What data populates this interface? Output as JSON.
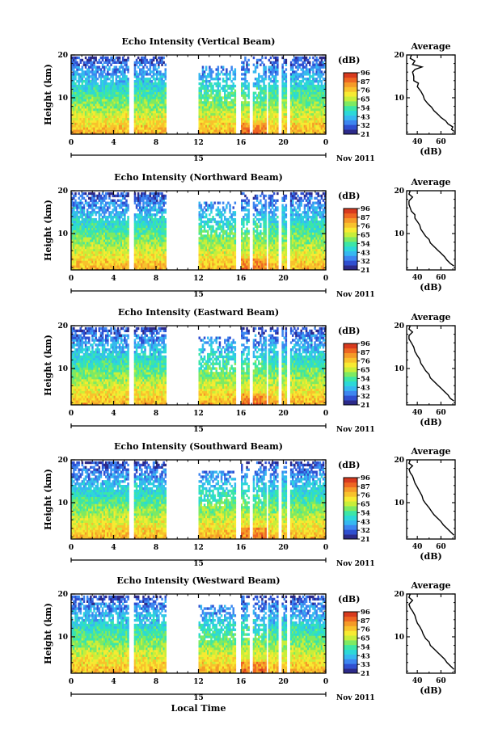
{
  "footer": {
    "xlabel": "Local Time"
  },
  "colorbar": {
    "unit": "(dB)",
    "ticks_a": [
      "96",
      "87",
      "76",
      "65",
      "54",
      "43",
      "32",
      "21"
    ],
    "ticks_b": [
      "96",
      "87",
      "76",
      "65",
      "54",
      "43",
      "33",
      "21"
    ],
    "colors": [
      "#2c2a8a",
      "#2f4fd0",
      "#3d86f0",
      "#36b8f0",
      "#2cd8d8",
      "#3ce6a6",
      "#7eea62",
      "#c8ee3a",
      "#f7ea32",
      "#f8c22c",
      "#f59a28",
      "#ee6622",
      "#d83a1e"
    ]
  },
  "chart_data": [
    {
      "type": "heatmap",
      "title": "Echo Intensity (Vertical Beam)",
      "ylabel": "Height (km)",
      "x_ticks": [
        "0",
        "4",
        "8",
        "12",
        "16",
        "20",
        "0"
      ],
      "y_ticks": [
        "20",
        "10"
      ],
      "date_day": "15",
      "date_label": "Nov 2011",
      "xlim": [
        0,
        24
      ],
      "ylim": [
        1.5,
        20
      ],
      "colorbar_ticks": "a",
      "profile": {
        "title": "Average",
        "xlabel": "(dB)",
        "x_ticks": [
          "40",
          "60"
        ],
        "xlim": [
          31,
          72
        ],
        "y_ticks": [
          "20",
          "10"
        ],
        "points": [
          [
            35,
            20
          ],
          [
            34,
            19.2
          ],
          [
            38,
            18.6
          ],
          [
            36,
            17.8
          ],
          [
            44,
            17.2
          ],
          [
            38,
            16.6
          ],
          [
            36,
            16
          ],
          [
            37,
            15
          ],
          [
            37,
            14
          ],
          [
            41,
            13.4
          ],
          [
            40,
            12.6
          ],
          [
            43,
            11.5
          ],
          [
            45,
            10.5
          ],
          [
            46,
            9.6
          ],
          [
            49,
            8.6
          ],
          [
            52,
            7.8
          ],
          [
            54,
            7
          ],
          [
            58,
            6
          ],
          [
            60,
            5.4
          ],
          [
            64,
            4.6
          ],
          [
            66,
            3.9
          ],
          [
            70,
            3.2
          ],
          [
            69,
            2.6
          ],
          [
            71,
            2.2
          ]
        ]
      }
    },
    {
      "type": "heatmap",
      "title": "Echo Intensity (Northward Beam)",
      "ylabel": "Height (km)",
      "x_ticks": [
        "0",
        "4",
        "8",
        "12",
        "16",
        "20",
        "0"
      ],
      "y_ticks": [
        "20",
        "10"
      ],
      "date_day": "15",
      "date_label": "Nov 2011",
      "xlim": [
        0,
        24
      ],
      "ylim": [
        1.5,
        20
      ],
      "colorbar_ticks": "a",
      "profile": {
        "title": "Average",
        "xlabel": "(dB)",
        "x_ticks": [
          "40",
          "60"
        ],
        "xlim": [
          31,
          72
        ],
        "y_ticks": [
          "20",
          "10"
        ],
        "points": [
          [
            34,
            20
          ],
          [
            33,
            19.2
          ],
          [
            36,
            18.5
          ],
          [
            33,
            17.6
          ],
          [
            33,
            16.8
          ],
          [
            34,
            16
          ],
          [
            35,
            15.2
          ],
          [
            38,
            14.4
          ],
          [
            38,
            13.6
          ],
          [
            40,
            12.8
          ],
          [
            42,
            12
          ],
          [
            43,
            11
          ],
          [
            45,
            10.2
          ],
          [
            47,
            9.4
          ],
          [
            50,
            8.6
          ],
          [
            51,
            7.8
          ],
          [
            54,
            7
          ],
          [
            57,
            6.2
          ],
          [
            60,
            5.4
          ],
          [
            63,
            4.6
          ],
          [
            65,
            3.8
          ],
          [
            68,
            3
          ],
          [
            71,
            2.4
          ]
        ]
      }
    },
    {
      "type": "heatmap",
      "title": "Echo Intensity (Eastward Beam)",
      "ylabel": "Height (km)",
      "x_ticks": [
        "0",
        "4",
        "8",
        "12",
        "16",
        "20",
        "0"
      ],
      "y_ticks": [
        "20",
        "10"
      ],
      "date_day": "15",
      "date_label": "Nov 2011",
      "xlim": [
        0,
        24
      ],
      "ylim": [
        1.5,
        20
      ],
      "colorbar_ticks": "a",
      "profile": {
        "title": "Average",
        "xlabel": "(dB)",
        "x_ticks": [
          "40",
          "60"
        ],
        "xlim": [
          31,
          72
        ],
        "y_ticks": [
          "20",
          "10"
        ],
        "points": [
          [
            34,
            20
          ],
          [
            33,
            19.2
          ],
          [
            36,
            18.5
          ],
          [
            33,
            17.7
          ],
          [
            33,
            16.9
          ],
          [
            35,
            16
          ],
          [
            37,
            15
          ],
          [
            38,
            14
          ],
          [
            40,
            13
          ],
          [
            42,
            12.2
          ],
          [
            43,
            11.2
          ],
          [
            45,
            10.4
          ],
          [
            47,
            9.5
          ],
          [
            50,
            8.6
          ],
          [
            51,
            7.8
          ],
          [
            54,
            7
          ],
          [
            57,
            6.2
          ],
          [
            60,
            5.4
          ],
          [
            63,
            4.6
          ],
          [
            66,
            3.8
          ],
          [
            68,
            3
          ],
          [
            71,
            2.4
          ]
        ]
      }
    },
    {
      "type": "heatmap",
      "title": "Echo Intensity (Southward Beam)",
      "ylabel": "Height (km)",
      "x_ticks": [
        "0",
        "4",
        "8",
        "12",
        "16",
        "20",
        "0"
      ],
      "y_ticks": [
        "20",
        "10"
      ],
      "date_day": "15",
      "date_label": "Nov 2011",
      "xlim": [
        0,
        24
      ],
      "ylim": [
        1.5,
        20
      ],
      "colorbar_ticks": "a",
      "profile": {
        "title": "Average",
        "xlabel": "(dB)",
        "x_ticks": [
          "40",
          "60"
        ],
        "xlim": [
          31,
          72
        ],
        "y_ticks": [
          "20",
          "10"
        ],
        "points": [
          [
            34,
            20
          ],
          [
            33,
            19.2
          ],
          [
            36,
            18.6
          ],
          [
            33,
            17.8
          ],
          [
            34,
            17
          ],
          [
            36,
            16.2
          ],
          [
            37,
            15.4
          ],
          [
            38,
            14.6
          ],
          [
            40,
            13.6
          ],
          [
            42,
            12.6
          ],
          [
            44,
            11.6
          ],
          [
            45,
            10.6
          ],
          [
            47,
            9.8
          ],
          [
            50,
            8.8
          ],
          [
            52,
            8
          ],
          [
            54,
            7.2
          ],
          [
            57,
            6.4
          ],
          [
            60,
            5.6
          ],
          [
            62,
            4.8
          ],
          [
            65,
            4
          ],
          [
            68,
            3.2
          ],
          [
            71,
            2.4
          ]
        ]
      }
    },
    {
      "type": "heatmap",
      "title": "Echo Intensity (Westward Beam)",
      "ylabel": "Height (km)",
      "x_ticks": [
        "0",
        "4",
        "8",
        "12",
        "16",
        "20",
        "0"
      ],
      "y_ticks": [
        "20",
        "10"
      ],
      "date_day": "15",
      "date_label": "Nov 2011",
      "xlim": [
        0,
        24
      ],
      "ylim": [
        1.5,
        20
      ],
      "colorbar_ticks": "b",
      "profile": {
        "title": "Average",
        "xlabel": "(dB)",
        "x_ticks": [
          "40",
          "60"
        ],
        "xlim": [
          31,
          72
        ],
        "y_ticks": [
          "20",
          "10"
        ],
        "points": [
          [
            34,
            20
          ],
          [
            33,
            19.2
          ],
          [
            36,
            18.5
          ],
          [
            33,
            17.6
          ],
          [
            34,
            16.8
          ],
          [
            36,
            16
          ],
          [
            38,
            15
          ],
          [
            39,
            14
          ],
          [
            40,
            13.2
          ],
          [
            42,
            12.4
          ],
          [
            44,
            11.4
          ],
          [
            45,
            10.6
          ],
          [
            47,
            9.6
          ],
          [
            50,
            8.8
          ],
          [
            51,
            8
          ],
          [
            54,
            7.2
          ],
          [
            57,
            6.4
          ],
          [
            60,
            5.6
          ],
          [
            63,
            4.8
          ],
          [
            65,
            4
          ],
          [
            68,
            3.2
          ],
          [
            71,
            2.4
          ]
        ]
      }
    }
  ]
}
